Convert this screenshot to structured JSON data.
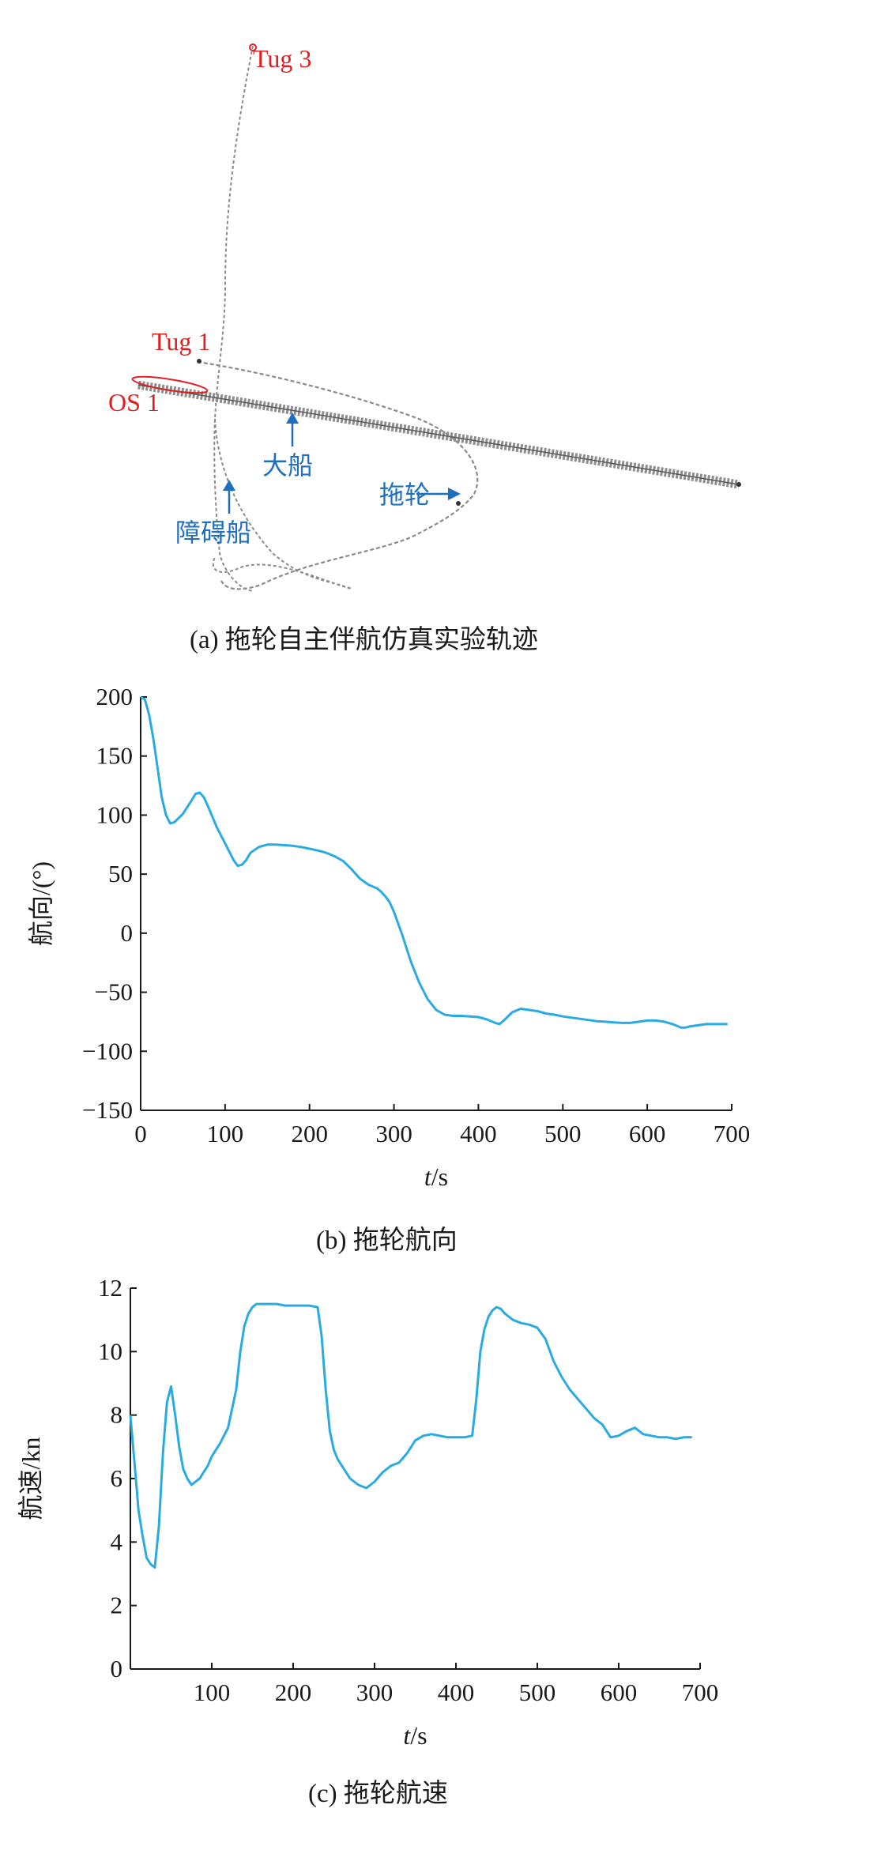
{
  "panel_a": {
    "caption": "(a) 拖轮自主伴航仿真实验轨迹",
    "labels": {
      "tug3": "Tug 3",
      "tug1": "Tug 1",
      "os1": "OS 1",
      "big_ship": "大船",
      "tug": "拖轮",
      "obstacle": "障碍船"
    }
  },
  "chart_data": [
    {
      "type": "line",
      "caption": "(b) 拖轮航向",
      "ylabel": "航向/(°)",
      "xlabel_italic": "t",
      "xlabel_unit": "/s",
      "xlim": [
        0,
        700
      ],
      "ylim": [
        -150,
        200
      ],
      "xticks": [
        0,
        100,
        200,
        300,
        400,
        500,
        600,
        700
      ],
      "yticks": [
        200,
        150,
        100,
        50,
        0,
        -50,
        -100,
        -150
      ],
      "ytick_labels": [
        "200",
        "150",
        "100",
        "50",
        "0",
        "−50",
        "−100",
        "−150"
      ],
      "color": "#29abe2",
      "x": [
        0,
        5,
        10,
        15,
        20,
        25,
        30,
        35,
        40,
        50,
        60,
        65,
        70,
        75,
        80,
        90,
        100,
        110,
        115,
        120,
        125,
        130,
        140,
        150,
        160,
        170,
        180,
        190,
        200,
        210,
        220,
        230,
        240,
        250,
        260,
        270,
        280,
        285,
        290,
        295,
        300,
        310,
        320,
        330,
        340,
        350,
        360,
        370,
        380,
        390,
        400,
        410,
        420,
        425,
        430,
        440,
        450,
        460,
        470,
        480,
        490,
        500,
        510,
        520,
        530,
        540,
        550,
        560,
        570,
        580,
        590,
        600,
        610,
        620,
        630,
        640,
        645,
        650,
        660,
        670,
        680,
        690,
        695
      ],
      "y": [
        200,
        198,
        185,
        165,
        140,
        115,
        100,
        93,
        94,
        101,
        112,
        118,
        119,
        115,
        107,
        90,
        76,
        62,
        57,
        58,
        62,
        68,
        73,
        75,
        75,
        74.5,
        74,
        73,
        71.5,
        70,
        68,
        65,
        61,
        54,
        46,
        41,
        38,
        35,
        31,
        26,
        18,
        -2,
        -24,
        -42,
        -56,
        -65,
        -69,
        -70,
        -70,
        -70.5,
        -71,
        -73,
        -76,
        -77,
        -74,
        -67,
        -64,
        -65,
        -66,
        -68,
        -69,
        -70.5,
        -71.5,
        -72.5,
        -73.5,
        -74.5,
        -75,
        -75.5,
        -76,
        -76,
        -75,
        -74,
        -74,
        -75,
        -77,
        -80,
        -80,
        -79,
        -78,
        -77,
        -77,
        -77,
        -77
      ]
    },
    {
      "type": "line",
      "caption": "(c) 拖轮航速",
      "ylabel": "航速/kn",
      "xlabel_italic": "t",
      "xlabel_unit": "/s",
      "xlim": [
        0,
        700
      ],
      "ylim": [
        0,
        12
      ],
      "xticks": [
        100,
        200,
        300,
        400,
        500,
        600,
        700
      ],
      "yticks": [
        0,
        2,
        4,
        6,
        8,
        10,
        12
      ],
      "color": "#29abe2",
      "x": [
        0,
        5,
        10,
        15,
        20,
        25,
        30,
        35,
        40,
        45,
        50,
        55,
        60,
        65,
        70,
        75,
        80,
        85,
        90,
        95,
        100,
        110,
        120,
        130,
        135,
        140,
        145,
        150,
        155,
        160,
        170,
        180,
        190,
        200,
        210,
        220,
        230,
        235,
        240,
        245,
        250,
        255,
        260,
        265,
        270,
        280,
        290,
        300,
        310,
        320,
        330,
        340,
        350,
        360,
        370,
        380,
        390,
        400,
        410,
        420,
        425,
        430,
        435,
        440,
        445,
        450,
        455,
        460,
        470,
        480,
        490,
        500,
        510,
        520,
        530,
        540,
        550,
        560,
        570,
        580,
        590,
        600,
        610,
        620,
        630,
        640,
        650,
        660,
        670,
        680,
        690
      ],
      "y": [
        8.0,
        6.5,
        5.0,
        4.2,
        3.5,
        3.3,
        3.2,
        4.5,
        6.8,
        8.4,
        8.9,
        8.0,
        7.0,
        6.3,
        6.0,
        5.8,
        5.9,
        6.0,
        6.2,
        6.4,
        6.7,
        7.1,
        7.6,
        8.8,
        10.0,
        10.8,
        11.2,
        11.4,
        11.5,
        11.5,
        11.5,
        11.5,
        11.45,
        11.45,
        11.45,
        11.45,
        11.4,
        10.5,
        8.8,
        7.5,
        6.9,
        6.6,
        6.4,
        6.2,
        6.0,
        5.8,
        5.7,
        5.9,
        6.2,
        6.4,
        6.5,
        6.8,
        7.2,
        7.35,
        7.4,
        7.35,
        7.3,
        7.3,
        7.3,
        7.35,
        8.5,
        10.0,
        10.7,
        11.1,
        11.3,
        11.4,
        11.35,
        11.2,
        11.0,
        10.9,
        10.85,
        10.75,
        10.4,
        9.7,
        9.2,
        8.8,
        8.5,
        8.2,
        7.9,
        7.7,
        7.3,
        7.35,
        7.5,
        7.6,
        7.4,
        7.35,
        7.3,
        7.3,
        7.25,
        7.3,
        7.3
      ]
    }
  ]
}
